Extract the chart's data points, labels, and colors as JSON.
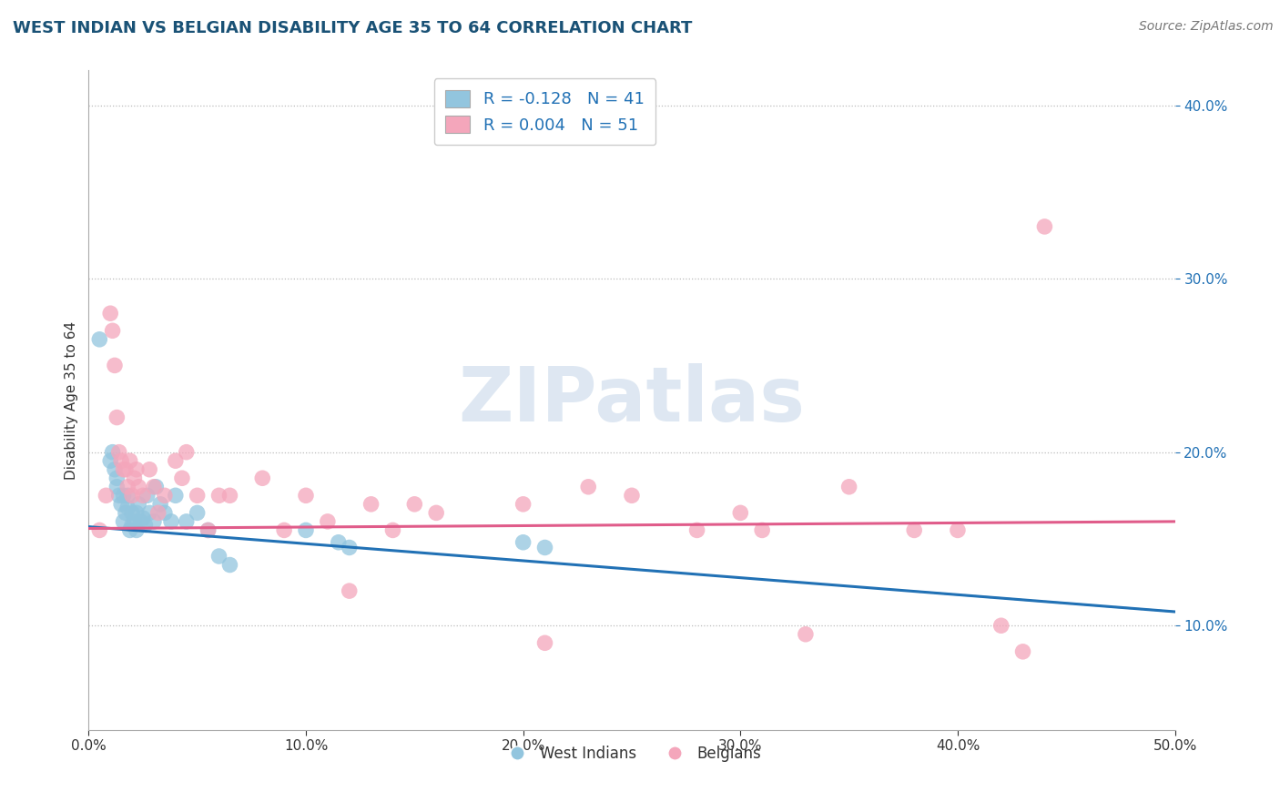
{
  "title": "WEST INDIAN VS BELGIAN DISABILITY AGE 35 TO 64 CORRELATION CHART",
  "source": "Source: ZipAtlas.com",
  "ylabel": "Disability Age 35 to 64",
  "xmin": 0.0,
  "xmax": 0.5,
  "ymin": 0.04,
  "ymax": 0.42,
  "yticks": [
    0.1,
    0.2,
    0.3,
    0.4
  ],
  "ytick_labels": [
    "10.0%",
    "20.0%",
    "30.0%",
    "40.0%"
  ],
  "xticks": [
    0.0,
    0.1,
    0.2,
    0.3,
    0.4,
    0.5
  ],
  "xtick_labels": [
    "0.0%",
    "10.0%",
    "20.0%",
    "30.0%",
    "40.0%",
    "50.0%"
  ],
  "legend_r1": "R = -0.128",
  "legend_n1": "N = 41",
  "legend_r2": "R = 0.004",
  "legend_n2": "N = 51",
  "color_blue": "#92c5de",
  "color_pink": "#f4a6bb",
  "color_blue_line": "#2171b5",
  "color_pink_line": "#e05c8a",
  "title_color": "#1a5276",
  "source_color": "#777777",
  "west_indians_x": [
    0.005,
    0.01,
    0.011,
    0.012,
    0.013,
    0.013,
    0.014,
    0.015,
    0.016,
    0.016,
    0.017,
    0.018,
    0.018,
    0.019,
    0.02,
    0.02,
    0.021,
    0.022,
    0.022,
    0.023,
    0.024,
    0.025,
    0.026,
    0.027,
    0.028,
    0.03,
    0.031,
    0.033,
    0.035,
    0.038,
    0.04,
    0.045,
    0.05,
    0.055,
    0.06,
    0.065,
    0.1,
    0.115,
    0.12,
    0.2,
    0.21
  ],
  "west_indians_y": [
    0.265,
    0.195,
    0.2,
    0.19,
    0.18,
    0.185,
    0.175,
    0.17,
    0.175,
    0.16,
    0.165,
    0.175,
    0.168,
    0.155,
    0.165,
    0.158,
    0.16,
    0.155,
    0.165,
    0.17,
    0.16,
    0.162,
    0.158,
    0.175,
    0.165,
    0.16,
    0.18,
    0.17,
    0.165,
    0.16,
    0.175,
    0.16,
    0.165,
    0.155,
    0.14,
    0.135,
    0.155,
    0.148,
    0.145,
    0.148,
    0.145
  ],
  "belgians_x": [
    0.005,
    0.008,
    0.01,
    0.011,
    0.012,
    0.013,
    0.014,
    0.015,
    0.016,
    0.017,
    0.018,
    0.019,
    0.02,
    0.021,
    0.022,
    0.023,
    0.025,
    0.028,
    0.03,
    0.032,
    0.035,
    0.04,
    0.043,
    0.045,
    0.05,
    0.055,
    0.06,
    0.065,
    0.08,
    0.09,
    0.1,
    0.11,
    0.12,
    0.13,
    0.14,
    0.15,
    0.16,
    0.2,
    0.21,
    0.23,
    0.25,
    0.28,
    0.3,
    0.31,
    0.33,
    0.35,
    0.38,
    0.4,
    0.42,
    0.43,
    0.44
  ],
  "belgians_y": [
    0.155,
    0.175,
    0.28,
    0.27,
    0.25,
    0.22,
    0.2,
    0.195,
    0.19,
    0.19,
    0.18,
    0.195,
    0.175,
    0.185,
    0.19,
    0.18,
    0.175,
    0.19,
    0.18,
    0.165,
    0.175,
    0.195,
    0.185,
    0.2,
    0.175,
    0.155,
    0.175,
    0.175,
    0.185,
    0.155,
    0.175,
    0.16,
    0.12,
    0.17,
    0.155,
    0.17,
    0.165,
    0.17,
    0.09,
    0.18,
    0.175,
    0.155,
    0.165,
    0.155,
    0.095,
    0.18,
    0.155,
    0.155,
    0.1,
    0.085,
    0.33
  ],
  "watermark_text": "ZIPatlas",
  "watermark_color": "#c8d8ea",
  "watermark_alpha": 0.6
}
